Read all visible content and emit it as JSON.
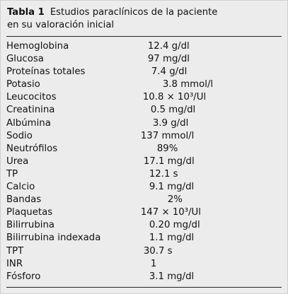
{
  "caption": {
    "label": "Tabla 1",
    "line1": "Estudios paraclínicos de la paciente",
    "line2": "en su valoración inicial"
  },
  "rows": [
    {
      "param": "Hemoglobina",
      "value": "12.4 g/dl"
    },
    {
      "param": "Glucosa",
      "value": "97 mg/dl"
    },
    {
      "param": "Proteínas totales",
      "value": "7.4 g/dl"
    },
    {
      "param": "Potasio",
      "value": "3.8 mmol/l"
    },
    {
      "param": "Leucocitos",
      "value": "10.8 × 10³/Ul"
    },
    {
      "param": "Creatinina",
      "value": "0.5 mg/dl"
    },
    {
      "param": "Albúmina",
      "value": "3.9 g/dl"
    },
    {
      "param": "Sodio",
      "value": "137 mmol/l"
    },
    {
      "param": "Neutrófilos",
      "value": "89%"
    },
    {
      "param": "Urea",
      "value": "17.1 mg/dl"
    },
    {
      "param": "TP",
      "value": "12.1 s"
    },
    {
      "param": "Calcio",
      "value": "9.1 mg/dl"
    },
    {
      "param": "Bandas",
      "value": "2%"
    },
    {
      "param": "Plaquetas",
      "value": "147 × 10³/Ul"
    },
    {
      "param": "Bilirrubina",
      "value": "0.20 mg/dl"
    },
    {
      "param": "Bilirrubina indexada",
      "value": "1.1 mg/dl"
    },
    {
      "param": "TPT",
      "value": "30.7 s"
    },
    {
      "param": "INR",
      "value": "1"
    },
    {
      "param": "Fósforo",
      "value": "3.1 mg/dl"
    }
  ]
}
